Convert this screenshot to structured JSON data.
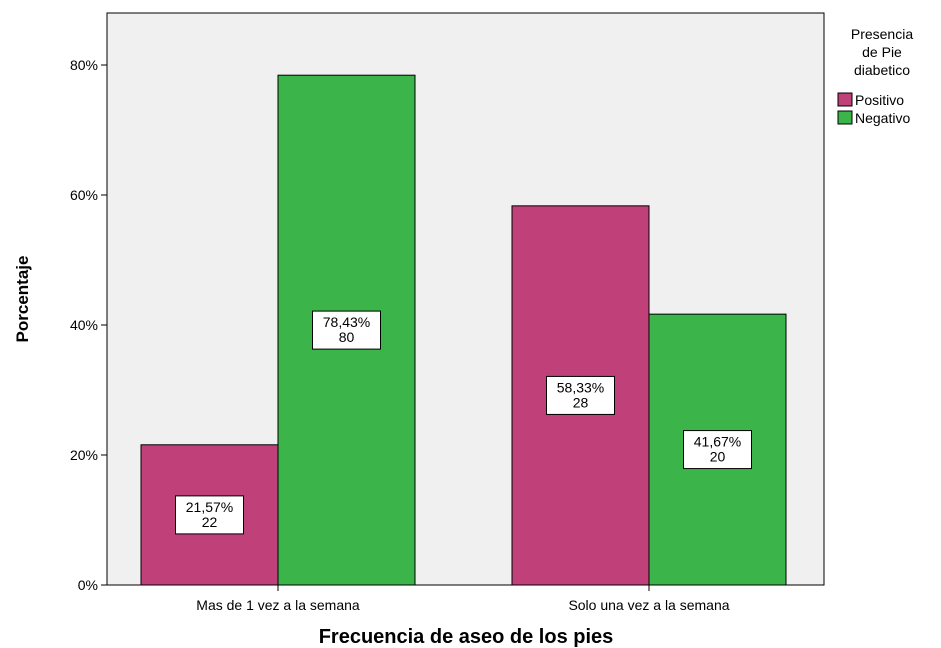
{
  "chart_data": {
    "type": "bar",
    "title": "",
    "xlabel": "Frecuencia de aseo de los pies",
    "ylabel": "Porcentaje",
    "categories": [
      "Mas de 1 vez a la semana",
      "Solo una vez a la semana"
    ],
    "series": [
      {
        "name": "Positivo",
        "values": [
          21.57,
          58.33
        ],
        "counts": [
          22,
          28
        ],
        "labels": [
          "21,57%",
          "58,33%"
        ],
        "color": "#c0407a"
      },
      {
        "name": "Negativo",
        "values": [
          78.43,
          41.67
        ],
        "counts": [
          80,
          20
        ],
        "labels": [
          "78,43%",
          "41,67%"
        ],
        "color": "#3bb54a"
      }
    ],
    "ylim": [
      0,
      88
    ],
    "yticks": [
      0,
      20,
      40,
      60,
      80
    ],
    "ytick_labels": [
      "0%",
      "20%",
      "40%",
      "60%",
      "80%"
    ],
    "grid": false,
    "plot_background": "#f0f0f0",
    "legend": {
      "title": [
        "Presencia",
        "de Pie",
        "diabetico"
      ],
      "placement": "top-right outside plot"
    }
  }
}
